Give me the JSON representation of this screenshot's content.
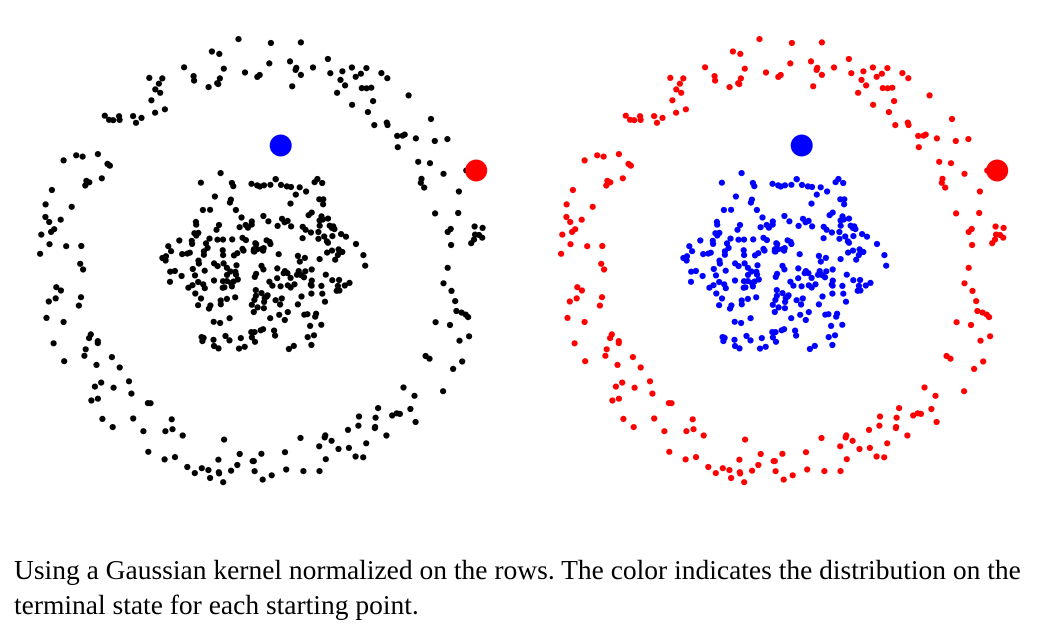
{
  "caption": "Using a Gaussian kernel normalized on the rows. The color indicates the distribution on the terminal state for each starting point.",
  "colors": {
    "outer_left": "#000000",
    "inner_left": "#000000",
    "outer_right": "#ff0000",
    "inner_right": "#0000ff",
    "marker_red": "#ff0000",
    "marker_blue": "#0000ff"
  },
  "chart_data": [
    {
      "type": "scatter",
      "title": "",
      "xlabel": "",
      "ylabel": "",
      "axes": "hidden",
      "grid": false,
      "xlim": [
        -1.3,
        1.3
      ],
      "ylim": [
        -1.3,
        1.3
      ],
      "dataset": "two concentric rings: inner disc radius ~0.5, outer annulus radius ~0.9-1.1",
      "series": [
        {
          "name": "",
          "role": "outer ring",
          "n_points": 220,
          "r_range": [
            0.85,
            1.08
          ],
          "color": "#000000"
        },
        {
          "name": "",
          "role": "inner cluster",
          "n_points": 260,
          "r_range": [
            0.0,
            0.5
          ],
          "color": "#000000"
        }
      ],
      "highlighted_points": [
        {
          "x": 0.09,
          "y": 0.56,
          "color": "#0000ff"
        },
        {
          "x": 1.03,
          "y": 0.44,
          "color": "#ff0000"
        }
      ]
    },
    {
      "type": "scatter",
      "title": "",
      "xlabel": "",
      "ylabel": "",
      "axes": "hidden",
      "grid": false,
      "xlim": [
        -1.3,
        1.3
      ],
      "ylim": [
        -1.3,
        1.3
      ],
      "series": [
        {
          "name": "",
          "role": "outer ring",
          "n_points": 220,
          "r_range": [
            0.85,
            1.08
          ],
          "color": "#ff0000"
        },
        {
          "name": "",
          "role": "inner cluster",
          "n_points": 260,
          "r_range": [
            0.0,
            0.5
          ],
          "color": "#0000ff"
        }
      ],
      "highlighted_points": [
        {
          "x": 0.09,
          "y": 0.56,
          "color": "#0000ff"
        },
        {
          "x": 1.03,
          "y": 0.44,
          "color": "#ff0000"
        }
      ]
    }
  ]
}
